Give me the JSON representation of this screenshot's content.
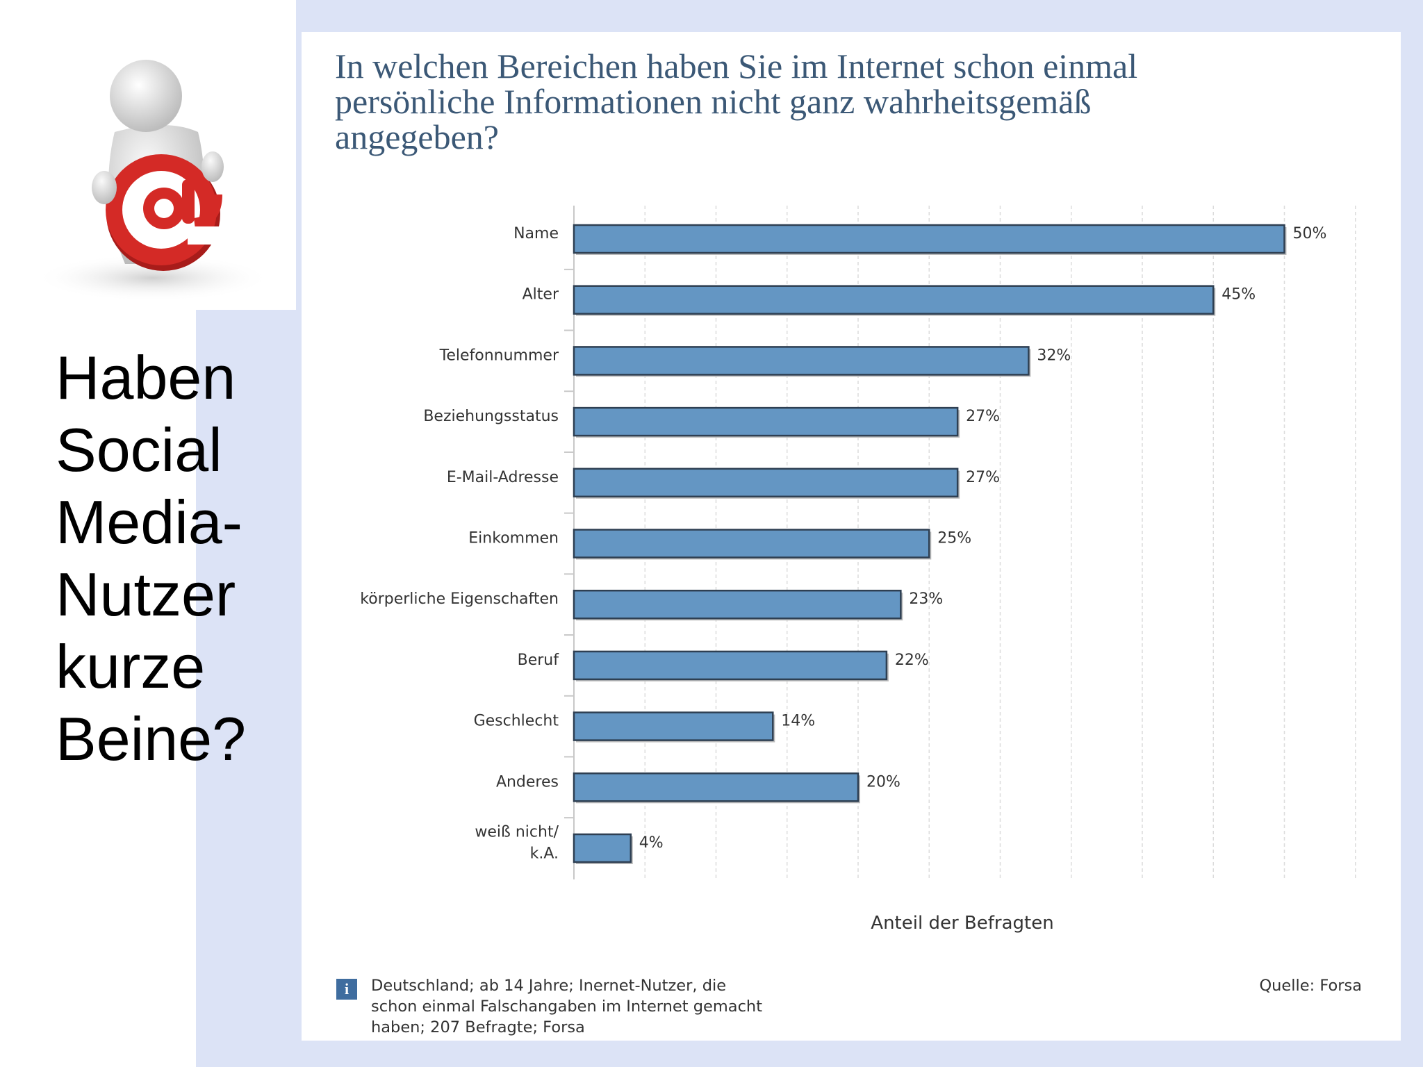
{
  "slide": {
    "headline_lines": [
      "Haben",
      "Social",
      "Media-",
      "Nutzer",
      "kurze",
      "Beine?"
    ],
    "icon": "person-holding-at-sign-icon",
    "colors": {
      "background_band": "#dce3f6",
      "at_sign": "#d42a26"
    }
  },
  "chart_data": {
    "type": "bar",
    "orientation": "horizontal",
    "title": "In welchen Bereichen haben Sie im Internet schon einmal persönliche Informationen nicht ganz wahrheitsgemäß angegeben?",
    "title_lines": [
      "In welchen Bereichen haben Sie im Internet schon einmal",
      "persönliche Informationen nicht ganz wahrheitsgemäß",
      "angegeben?"
    ],
    "categories": [
      [
        "Name"
      ],
      [
        "Alter"
      ],
      [
        "Telefonnummer"
      ],
      [
        "Beziehungsstatus"
      ],
      [
        "E-Mail-Adresse"
      ],
      [
        "Einkommen"
      ],
      [
        "körperliche Eigenschaften"
      ],
      [
        "Beruf"
      ],
      [
        "Geschlecht"
      ],
      [
        "Anderes"
      ],
      [
        "weiß nicht/",
        "k.A."
      ]
    ],
    "values": [
      50,
      45,
      32,
      27,
      27,
      25,
      23,
      22,
      14,
      20,
      4
    ],
    "value_labels": [
      "50%",
      "45%",
      "32%",
      "27%",
      "27%",
      "25%",
      "23%",
      "22%",
      "14%",
      "20%",
      "4%"
    ],
    "xlabel": "Anteil der Befragten",
    "ylabel": "",
    "xlim": [
      0,
      55
    ],
    "grid": true,
    "bar_color": "#6496c3"
  },
  "footer": {
    "info_icon_glyph": "i",
    "note_lines": [
      "Deutschland; ab 14 Jahre; Inernet-Nutzer, die",
      "schon einmal Falschangaben im Internet gemacht",
      "haben; 207 Befragte; Forsa"
    ],
    "source": "Quelle: Forsa"
  }
}
